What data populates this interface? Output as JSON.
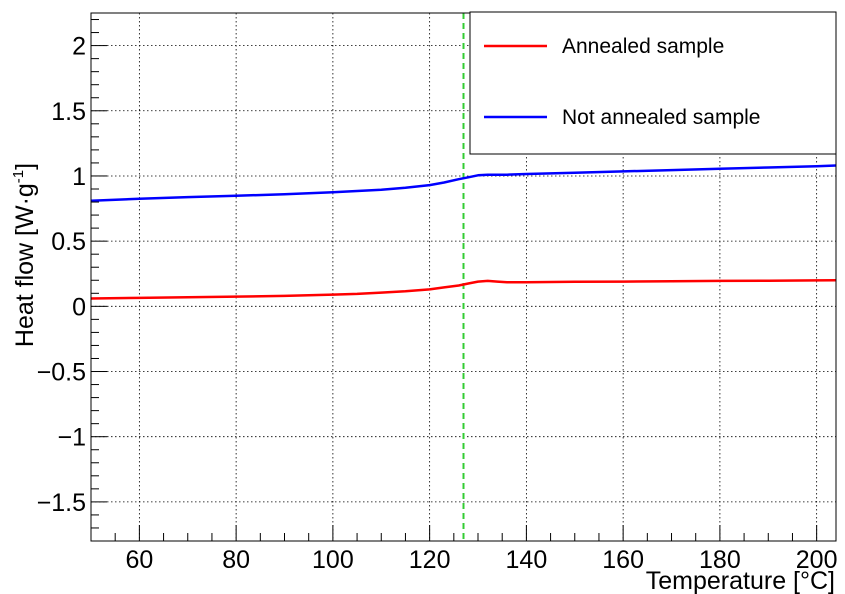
{
  "chart_data": {
    "type": "line",
    "xlabel": "Temperature [°C]",
    "ylabel_main": "Heat flow [W·g",
    "ylabel_sup": "-1",
    "ylabel_close": "]",
    "xlim": [
      50,
      204
    ],
    "ylim": [
      -1.8,
      2.25
    ],
    "xticks": [
      60,
      80,
      100,
      120,
      140,
      160,
      180,
      200
    ],
    "xtick_labels": [
      "60",
      "80",
      "100",
      "120",
      "140",
      "160",
      "180",
      "200"
    ],
    "yticks": [
      -1.5,
      -1,
      -0.5,
      0,
      0.5,
      1,
      1.5,
      2
    ],
    "ytick_labels": [
      "−1.5",
      "−1",
      "−0.5",
      "0",
      "0.5",
      "1",
      "1.5",
      "2"
    ],
    "grid": true,
    "legend_position": "top-right",
    "vline": {
      "x": 127,
      "color": "#33cc33",
      "style": "dashed"
    },
    "series": [
      {
        "name": "Annealed sample",
        "color": "#ff0000",
        "x": [
          50,
          60,
          70,
          80,
          90,
          100,
          105,
          110,
          115,
          120,
          123,
          126,
          128,
          130,
          132,
          134,
          136,
          140,
          150,
          160,
          170,
          180,
          190,
          200,
          204
        ],
        "y": [
          0.06,
          0.065,
          0.07,
          0.075,
          0.08,
          0.09,
          0.095,
          0.105,
          0.115,
          0.13,
          0.145,
          0.16,
          0.175,
          0.19,
          0.195,
          0.19,
          0.185,
          0.185,
          0.188,
          0.19,
          0.193,
          0.195,
          0.197,
          0.199,
          0.2
        ]
      },
      {
        "name": "Not annealed sample",
        "color": "#0000ff",
        "x": [
          50,
          60,
          70,
          80,
          90,
          100,
          105,
          110,
          115,
          120,
          123,
          126,
          128,
          130,
          132,
          134,
          136,
          140,
          150,
          160,
          170,
          180,
          190,
          200,
          204
        ],
        "y": [
          0.81,
          0.825,
          0.838,
          0.848,
          0.86,
          0.875,
          0.885,
          0.895,
          0.91,
          0.93,
          0.95,
          0.975,
          0.99,
          1.005,
          1.01,
          1.01,
          1.01,
          1.015,
          1.025,
          1.035,
          1.045,
          1.055,
          1.065,
          1.075,
          1.08
        ]
      }
    ]
  }
}
